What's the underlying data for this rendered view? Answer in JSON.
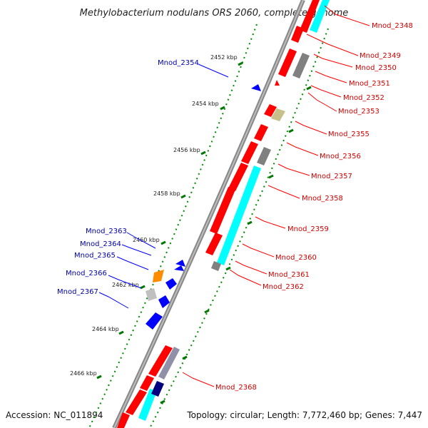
{
  "title": "Methylobacterium nodulans ORS 2060, complete genome",
  "accession": "Accession: NC_011894",
  "summary": "Topology: circular; Length: 7,772,460 bp; Genes: 7,447",
  "ticks": [
    "2452 kbp",
    "2454 kbp",
    "2456 kbp",
    "2458 kbp",
    "2460 kbp",
    "2462 kbp",
    "2464 kbp",
    "2466 kbp"
  ],
  "colors": {
    "forward_cds": "#ff0000",
    "reverse_cds": "#0000ff",
    "rna_cyan": "#00ffff",
    "gray_feature": "#808080",
    "olive_feature": "#c8c08a",
    "orange_feature": "#ff8c00",
    "navy_feature": "#000080",
    "forward_label": "#cc0000",
    "reverse_label": "#0000aa",
    "backbone": "#888888",
    "gc_dots": "#008800"
  },
  "labels_right": [
    "Mnod_2348",
    "Mnod_2349",
    "Mnod_2350",
    "Mnod_2351",
    "Mnod_2352",
    "Mnod_2353",
    "Mnod_2355",
    "Mnod_2356",
    "Mnod_2357",
    "Mnod_2358",
    "Mnod_2359",
    "Mnod_2360",
    "Mnod_2361",
    "Mnod_2362",
    "Mnod_2368"
  ],
  "labels_left": [
    "Mnod_2354",
    "Mnod_2363",
    "Mnod_2364",
    "Mnod_2365",
    "Mnod_2366",
    "Mnod_2367"
  ]
}
